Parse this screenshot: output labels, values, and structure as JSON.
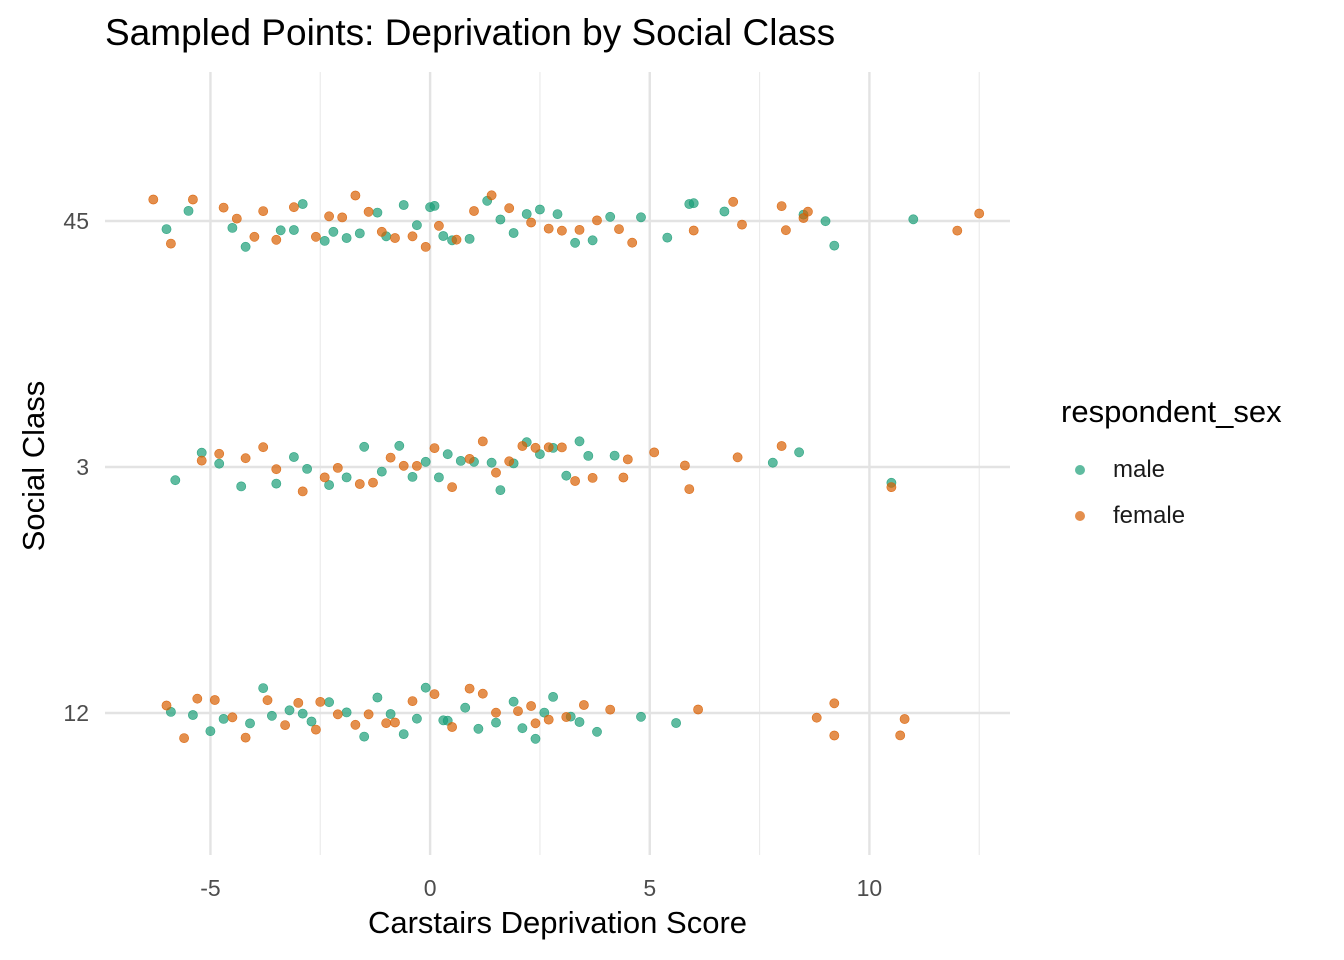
{
  "chart_data": {
    "type": "scatter",
    "title": "Sampled Points: Deprivation by Social Class",
    "xlabel": "Carstairs Deprivation Score",
    "ylabel": "Social Class",
    "xlim": [
      -7.4,
      13.2
    ],
    "x_ticks": [
      -5,
      0,
      5,
      10
    ],
    "x_tick_labels": [
      "-5",
      "0",
      "5",
      "10"
    ],
    "y_categories": [
      "12",
      "3",
      "45"
    ],
    "grid": true,
    "legend_title": "respondent_sex",
    "legend_position": "right",
    "series": [
      {
        "name": "male",
        "color": "#1B9E77",
        "points": [
          [
            -6.0,
            "45"
          ],
          [
            -5.5,
            "45"
          ],
          [
            -4.5,
            "45"
          ],
          [
            -4.2,
            "45"
          ],
          [
            -3.4,
            "45"
          ],
          [
            -3.1,
            "45"
          ],
          [
            -2.9,
            "45"
          ],
          [
            -2.4,
            "45"
          ],
          [
            -2.2,
            "45"
          ],
          [
            -1.9,
            "45"
          ],
          [
            -1.6,
            "45"
          ],
          [
            -1.2,
            "45"
          ],
          [
            -1.0,
            "45"
          ],
          [
            -0.6,
            "45"
          ],
          [
            -0.3,
            "45"
          ],
          [
            0.0,
            "45"
          ],
          [
            0.1,
            "45"
          ],
          [
            0.3,
            "45"
          ],
          [
            0.5,
            "45"
          ],
          [
            0.9,
            "45"
          ],
          [
            1.3,
            "45"
          ],
          [
            1.6,
            "45"
          ],
          [
            1.9,
            "45"
          ],
          [
            2.2,
            "45"
          ],
          [
            2.5,
            "45"
          ],
          [
            2.9,
            "45"
          ],
          [
            3.3,
            "45"
          ],
          [
            3.7,
            "45"
          ],
          [
            4.1,
            "45"
          ],
          [
            4.8,
            "45"
          ],
          [
            5.4,
            "45"
          ],
          [
            5.9,
            "45"
          ],
          [
            6.0,
            "45"
          ],
          [
            6.7,
            "45"
          ],
          [
            8.5,
            "45"
          ],
          [
            9.0,
            "45"
          ],
          [
            9.2,
            "45"
          ],
          [
            11.0,
            "45"
          ],
          [
            -5.8,
            "3"
          ],
          [
            -5.2,
            "3"
          ],
          [
            -4.8,
            "3"
          ],
          [
            -4.3,
            "3"
          ],
          [
            -3.5,
            "3"
          ],
          [
            -3.1,
            "3"
          ],
          [
            -2.8,
            "3"
          ],
          [
            -2.3,
            "3"
          ],
          [
            -1.9,
            "3"
          ],
          [
            -1.5,
            "3"
          ],
          [
            -1.1,
            "3"
          ],
          [
            -0.7,
            "3"
          ],
          [
            -0.4,
            "3"
          ],
          [
            -0.1,
            "3"
          ],
          [
            0.2,
            "3"
          ],
          [
            0.4,
            "3"
          ],
          [
            0.7,
            "3"
          ],
          [
            1.0,
            "3"
          ],
          [
            1.4,
            "3"
          ],
          [
            1.6,
            "3"
          ],
          [
            1.9,
            "3"
          ],
          [
            2.2,
            "3"
          ],
          [
            2.5,
            "3"
          ],
          [
            2.8,
            "3"
          ],
          [
            3.1,
            "3"
          ],
          [
            3.4,
            "3"
          ],
          [
            3.6,
            "3"
          ],
          [
            4.2,
            "3"
          ],
          [
            7.8,
            "3"
          ],
          [
            8.4,
            "3"
          ],
          [
            10.5,
            "3"
          ],
          [
            -5.9,
            "12"
          ],
          [
            -5.4,
            "12"
          ],
          [
            -5.0,
            "12"
          ],
          [
            -4.7,
            "12"
          ],
          [
            -4.1,
            "12"
          ],
          [
            -3.8,
            "12"
          ],
          [
            -3.6,
            "12"
          ],
          [
            -3.2,
            "12"
          ],
          [
            -2.9,
            "12"
          ],
          [
            -2.7,
            "12"
          ],
          [
            -2.3,
            "12"
          ],
          [
            -1.9,
            "12"
          ],
          [
            -1.5,
            "12"
          ],
          [
            -1.2,
            "12"
          ],
          [
            -0.9,
            "12"
          ],
          [
            -0.6,
            "12"
          ],
          [
            -0.3,
            "12"
          ],
          [
            -0.1,
            "12"
          ],
          [
            0.3,
            "12"
          ],
          [
            0.4,
            "12"
          ],
          [
            0.8,
            "12"
          ],
          [
            1.1,
            "12"
          ],
          [
            1.5,
            "12"
          ],
          [
            1.9,
            "12"
          ],
          [
            2.1,
            "12"
          ],
          [
            2.4,
            "12"
          ],
          [
            2.6,
            "12"
          ],
          [
            2.8,
            "12"
          ],
          [
            3.2,
            "12"
          ],
          [
            3.4,
            "12"
          ],
          [
            3.8,
            "12"
          ],
          [
            4.8,
            "12"
          ],
          [
            5.6,
            "12"
          ]
        ]
      },
      {
        "name": "female",
        "color": "#D95F02",
        "points": [
          [
            -6.3,
            "45"
          ],
          [
            -5.9,
            "45"
          ],
          [
            -5.4,
            "45"
          ],
          [
            -4.7,
            "45"
          ],
          [
            -4.4,
            "45"
          ],
          [
            -4.0,
            "45"
          ],
          [
            -3.8,
            "45"
          ],
          [
            -3.5,
            "45"
          ],
          [
            -3.1,
            "45"
          ],
          [
            -2.6,
            "45"
          ],
          [
            -2.3,
            "45"
          ],
          [
            -2.0,
            "45"
          ],
          [
            -1.7,
            "45"
          ],
          [
            -1.4,
            "45"
          ],
          [
            -1.1,
            "45"
          ],
          [
            -0.8,
            "45"
          ],
          [
            -0.4,
            "45"
          ],
          [
            -0.1,
            "45"
          ],
          [
            0.2,
            "45"
          ],
          [
            0.6,
            "45"
          ],
          [
            1.0,
            "45"
          ],
          [
            1.4,
            "45"
          ],
          [
            1.8,
            "45"
          ],
          [
            2.3,
            "45"
          ],
          [
            2.7,
            "45"
          ],
          [
            3.0,
            "45"
          ],
          [
            3.4,
            "45"
          ],
          [
            3.8,
            "45"
          ],
          [
            4.3,
            "45"
          ],
          [
            4.6,
            "45"
          ],
          [
            6.0,
            "45"
          ],
          [
            6.9,
            "45"
          ],
          [
            7.1,
            "45"
          ],
          [
            8.0,
            "45"
          ],
          [
            8.1,
            "45"
          ],
          [
            8.5,
            "45"
          ],
          [
            8.6,
            "45"
          ],
          [
            12.0,
            "45"
          ],
          [
            12.5,
            "45"
          ],
          [
            -5.2,
            "3"
          ],
          [
            -4.8,
            "3"
          ],
          [
            -4.2,
            "3"
          ],
          [
            -3.8,
            "3"
          ],
          [
            -3.5,
            "3"
          ],
          [
            -2.9,
            "3"
          ],
          [
            -2.4,
            "3"
          ],
          [
            -2.1,
            "3"
          ],
          [
            -1.6,
            "3"
          ],
          [
            -1.3,
            "3"
          ],
          [
            -0.9,
            "3"
          ],
          [
            -0.6,
            "3"
          ],
          [
            -0.3,
            "3"
          ],
          [
            0.1,
            "3"
          ],
          [
            0.5,
            "3"
          ],
          [
            0.9,
            "3"
          ],
          [
            1.2,
            "3"
          ],
          [
            1.5,
            "3"
          ],
          [
            1.8,
            "3"
          ],
          [
            2.1,
            "3"
          ],
          [
            2.4,
            "3"
          ],
          [
            2.7,
            "3"
          ],
          [
            3.0,
            "3"
          ],
          [
            3.3,
            "3"
          ],
          [
            3.7,
            "3"
          ],
          [
            4.4,
            "3"
          ],
          [
            4.5,
            "3"
          ],
          [
            5.1,
            "3"
          ],
          [
            5.8,
            "3"
          ],
          [
            5.9,
            "3"
          ],
          [
            7.0,
            "3"
          ],
          [
            8.0,
            "3"
          ],
          [
            10.5,
            "3"
          ],
          [
            -6.0,
            "12"
          ],
          [
            -5.6,
            "12"
          ],
          [
            -5.3,
            "12"
          ],
          [
            -4.9,
            "12"
          ],
          [
            -4.5,
            "12"
          ],
          [
            -4.2,
            "12"
          ],
          [
            -3.7,
            "12"
          ],
          [
            -3.3,
            "12"
          ],
          [
            -3.0,
            "12"
          ],
          [
            -2.6,
            "12"
          ],
          [
            -2.5,
            "12"
          ],
          [
            -2.1,
            "12"
          ],
          [
            -1.7,
            "12"
          ],
          [
            -1.4,
            "12"
          ],
          [
            -1.0,
            "12"
          ],
          [
            -0.8,
            "12"
          ],
          [
            -0.4,
            "12"
          ],
          [
            0.1,
            "12"
          ],
          [
            0.5,
            "12"
          ],
          [
            0.9,
            "12"
          ],
          [
            1.2,
            "12"
          ],
          [
            1.5,
            "12"
          ],
          [
            2.0,
            "12"
          ],
          [
            2.3,
            "12"
          ],
          [
            2.4,
            "12"
          ],
          [
            2.7,
            "12"
          ],
          [
            3.1,
            "12"
          ],
          [
            3.5,
            "12"
          ],
          [
            4.1,
            "12"
          ],
          [
            6.1,
            "12"
          ],
          [
            8.8,
            "12"
          ],
          [
            9.2,
            "12"
          ],
          [
            9.2,
            "12"
          ],
          [
            10.7,
            "12"
          ],
          [
            10.8,
            "12"
          ]
        ]
      }
    ]
  }
}
